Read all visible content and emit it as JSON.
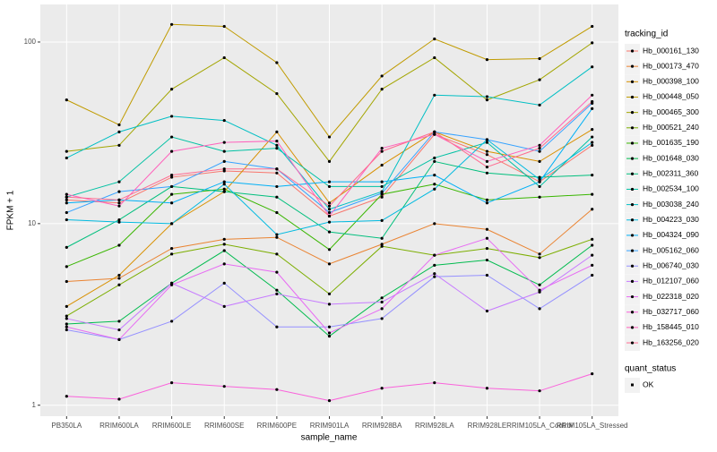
{
  "chart_data": {
    "type": "line",
    "log_y": true,
    "grid": true,
    "xlabel": "sample_name",
    "ylabel": "FPKM + 1",
    "categories": [
      "PB350LA",
      "RRIM600LA",
      "RRIM600LE",
      "RRIM600SE",
      "RRIM600PE",
      "RRIM901LA",
      "RRIM928BA",
      "RRIM928LA",
      "RRIM928LE",
      "RRIM105LA_Control",
      "RRIM105LA_Stressed"
    ],
    "ylim": [
      0.87,
      161
    ],
    "yticks": [
      1,
      10,
      100
    ],
    "legend_title": "tracking_id",
    "marker_legend": {
      "title": "quant_status",
      "labels": [
        "OK"
      ],
      "color": "#000000"
    },
    "series": [
      {
        "name": "Hb_000161_130",
        "color": "#F8766D",
        "values": [
          13.5,
          13,
          18,
          19.5,
          19,
          11,
          14,
          31,
          24,
          17,
          27
        ]
      },
      {
        "name": "Hb_000173_470",
        "color": "#EA8331",
        "values": [
          4.8,
          5,
          7.3,
          8.2,
          8.4,
          6,
          7.7,
          10,
          9.3,
          6.8,
          12
        ]
      },
      {
        "name": "Hb_000398_100",
        "color": "#D89000",
        "values": [
          3.5,
          5.2,
          10,
          15,
          32,
          13,
          21,
          32,
          25,
          22,
          33
        ]
      },
      {
        "name": "Hb_000448_050",
        "color": "#C09B00",
        "values": [
          48,
          35,
          125,
          122,
          77,
          30,
          65,
          104,
          80,
          81,
          122
        ]
      },
      {
        "name": "Hb_000465_300",
        "color": "#A3A500",
        "values": [
          25,
          27,
          55,
          82,
          52,
          22,
          55,
          82,
          48,
          62,
          99
        ]
      },
      {
        "name": "Hb_000521_240",
        "color": "#7CAE00",
        "values": [
          3.1,
          4.6,
          6.8,
          7.7,
          6.8,
          4.1,
          7.5,
          6.7,
          7.3,
          6.5,
          8.2
        ]
      },
      {
        "name": "Hb_001635_190",
        "color": "#39B600",
        "values": [
          5.8,
          7.6,
          14.5,
          15.5,
          11.5,
          7.2,
          14.5,
          16.5,
          13.5,
          14,
          14.5
        ]
      },
      {
        "name": "Hb_001648_030",
        "color": "#00BB4E",
        "values": [
          2.8,
          2.9,
          4.7,
          7.1,
          4.3,
          2.4,
          3.9,
          5.9,
          6.3,
          4.6,
          7.6
        ]
      },
      {
        "name": "Hb_002311_360",
        "color": "#00BF7D",
        "values": [
          7.4,
          10.5,
          16,
          15,
          14,
          9,
          8.3,
          22,
          19,
          18,
          18.5
        ]
      },
      {
        "name": "Hb_002534_100",
        "color": "#00C1A3",
        "values": [
          14,
          17,
          30,
          25,
          26,
          16,
          16,
          23,
          28,
          16,
          30
        ]
      },
      {
        "name": "Hb_003038_240",
        "color": "#00BFC4",
        "values": [
          23,
          32,
          39,
          37,
          27,
          12,
          15,
          51,
          50,
          45,
          73
        ]
      },
      {
        "name": "Hb_004223_030",
        "color": "#00BAE0",
        "values": [
          10.5,
          10.2,
          10,
          16.5,
          8.7,
          10.2,
          10.4,
          15.5,
          29,
          17.5,
          28
        ]
      },
      {
        "name": "Hb_004324_090",
        "color": "#00B0F6",
        "values": [
          13,
          13.5,
          13,
          17,
          16,
          17,
          17,
          18.5,
          13,
          17,
          43
        ]
      },
      {
        "name": "Hb_005162_060",
        "color": "#35A2FF",
        "values": [
          11.5,
          15,
          16,
          22,
          20,
          11.5,
          14.7,
          32,
          29,
          25,
          46
        ]
      },
      {
        "name": "Hb_006740_030",
        "color": "#9590FF",
        "values": [
          2.6,
          2.3,
          2.9,
          4.7,
          2.7,
          2.7,
          3.0,
          5.1,
          5.2,
          3.4,
          5.2
        ]
      },
      {
        "name": "Hb_012107_060",
        "color": "#C77CFF",
        "values": [
          3.0,
          2.6,
          4.7,
          3.5,
          4.1,
          3.6,
          3.7,
          5.3,
          3.3,
          4.2,
          6.7
        ]
      },
      {
        "name": "Hb_022318_020",
        "color": "#E76BF3",
        "values": [
          2.7,
          2.3,
          4.6,
          6.0,
          5.4,
          2.5,
          3.4,
          6.7,
          8.3,
          4.3,
          5.9
        ]
      },
      {
        "name": "Hb_032717_060",
        "color": "#FA62DB",
        "values": [
          1.12,
          1.08,
          1.33,
          1.27,
          1.22,
          1.06,
          1.24,
          1.33,
          1.24,
          1.2,
          1.49
        ]
      },
      {
        "name": "Hb_158445_010",
        "color": "#FF62BC",
        "values": [
          14.5,
          12.5,
          25,
          28,
          28.5,
          11,
          26,
          31,
          22,
          27,
          51
        ]
      },
      {
        "name": "Hb_163256_020",
        "color": "#FF6C91",
        "values": [
          14,
          13.5,
          18.5,
          20,
          20,
          12.5,
          25,
          32,
          20.5,
          26,
          47
        ]
      }
    ]
  }
}
